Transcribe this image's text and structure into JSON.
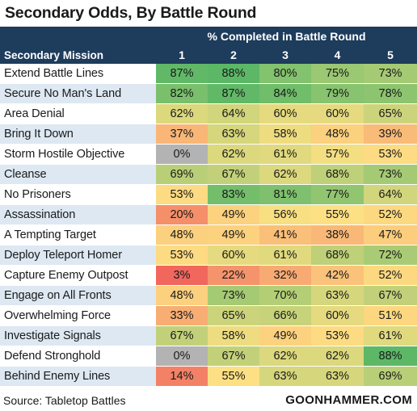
{
  "chart_data": {
    "type": "table",
    "title": "Secondary Odds, By Battle Round",
    "column_group_label": "% Completed in Battle Round",
    "row_header": "Secondary Mission",
    "columns": [
      "1",
      "2",
      "3",
      "4",
      "5"
    ],
    "rows": [
      {
        "name": "Extend Battle Lines",
        "values": [
          87,
          88,
          80,
          75,
          73
        ]
      },
      {
        "name": "Secure No Man's Land",
        "values": [
          82,
          87,
          84,
          79,
          78
        ]
      },
      {
        "name": "Area Denial",
        "values": [
          62,
          64,
          60,
          60,
          65
        ]
      },
      {
        "name": "Bring It Down",
        "values": [
          37,
          63,
          58,
          48,
          39
        ]
      },
      {
        "name": "Storm Hostile Objective",
        "values": [
          0,
          62,
          61,
          57,
          53
        ]
      },
      {
        "name": "Cleanse",
        "values": [
          69,
          67,
          62,
          68,
          73
        ]
      },
      {
        "name": "No Prisoners",
        "values": [
          53,
          83,
          81,
          77,
          64
        ]
      },
      {
        "name": "Assassination",
        "values": [
          20,
          49,
          56,
          55,
          52
        ]
      },
      {
        "name": "A Tempting Target",
        "values": [
          48,
          49,
          41,
          38,
          47
        ]
      },
      {
        "name": "Deploy Teleport Homer",
        "values": [
          53,
          60,
          61,
          68,
          72
        ]
      },
      {
        "name": "Capture Enemy Outpost",
        "values": [
          3,
          22,
          32,
          42,
          52
        ]
      },
      {
        "name": "Engage on All Fronts",
        "values": [
          48,
          73,
          70,
          63,
          67
        ]
      },
      {
        "name": "Overwhelming Force",
        "values": [
          33,
          65,
          66,
          60,
          51
        ]
      },
      {
        "name": "Investigate Signals",
        "values": [
          67,
          58,
          49,
          53,
          61
        ]
      },
      {
        "name": "Defend Stronghold",
        "values": [
          0,
          67,
          62,
          62,
          88
        ]
      },
      {
        "name": "Behind Enemy Lines",
        "values": [
          14,
          55,
          63,
          63,
          69
        ]
      }
    ],
    "value_suffix": "%",
    "grey_cells": [
      [
        4,
        0
      ],
      [
        14,
        0
      ]
    ],
    "colors": {
      "header_bg": "#1e3c5c",
      "low": "#f0605c",
      "mid": "#fde083",
      "high": "#5cb867",
      "na": "#b3b3b3"
    }
  },
  "footer": {
    "source": "Source: Tabletop Battles",
    "brand": "GOONHAMMER.COM"
  }
}
